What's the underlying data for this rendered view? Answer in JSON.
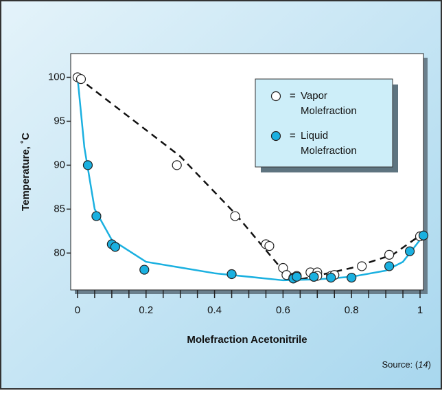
{
  "chart_data": {
    "type": "scatter",
    "xlabel": "Molefraction Acetonitrile",
    "ylabel": "Temperature, ˚C",
    "xlim": [
      -0.02,
      1.01
    ],
    "ylim": [
      75.8,
      102.7
    ],
    "xticks": [
      0,
      0.2,
      0.4,
      0.6,
      0.8,
      1
    ],
    "xminorticks": [
      0.05,
      0.1,
      0.15,
      0.25,
      0.3,
      0.35,
      0.45,
      0.5,
      0.55,
      0.65,
      0.7,
      0.75,
      0.85,
      0.9,
      0.95
    ],
    "yticks": [
      80,
      85,
      90,
      95,
      100
    ],
    "legend_prefix": "=",
    "legend": "upper right",
    "series": [
      {
        "name": "Vapor Molefraction",
        "color": "#ffffff",
        "x": [
          0,
          0.01,
          0.29,
          0.46,
          0.55,
          0.56,
          0.6,
          0.61,
          0.63,
          0.64,
          0.68,
          0.69,
          0.7,
          0.7,
          0.74,
          0.75,
          0.83,
          0.91,
          1.0
        ],
        "values": [
          100,
          99.8,
          90,
          84.2,
          81,
          80.8,
          78.3,
          77.5,
          77.2,
          77.4,
          77.8,
          77.3,
          77.8,
          77.4,
          77.4,
          77.5,
          78.5,
          79.8,
          81.9
        ]
      },
      {
        "name": "Liquid Molefraction",
        "color": "#1ab0e0",
        "x": [
          0.03,
          0.055,
          0.1,
          0.11,
          0.195,
          0.45,
          0.63,
          0.64,
          0.69,
          0.74,
          0.8,
          0.91,
          0.97,
          1.01
        ],
        "values": [
          90,
          84.2,
          81,
          80.7,
          78.1,
          77.6,
          77.1,
          77.3,
          77.3,
          77.2,
          77.2,
          78.5,
          80.2,
          82
        ]
      }
    ],
    "curves": [
      {
        "style": "dashed",
        "color": "#111111",
        "x": [
          0,
          0.3,
          0.46,
          0.6,
          0.65,
          0.8,
          0.92,
          1.0
        ],
        "values": [
          100,
          91,
          84.5,
          78,
          77,
          78.3,
          79.8,
          82
        ]
      },
      {
        "style": "solid",
        "color": "#1ab0e0",
        "x": [
          0,
          0.02,
          0.05,
          0.1,
          0.2,
          0.4,
          0.6,
          0.7,
          0.8,
          0.9,
          0.95,
          1.0,
          1.02
        ],
        "values": [
          100,
          92,
          85,
          81.5,
          79,
          77.7,
          76.9,
          77,
          77.3,
          78,
          79,
          81.5,
          82
        ]
      }
    ],
    "source": {
      "text": "Source: (",
      "ref": "14",
      "close": ")"
    }
  }
}
